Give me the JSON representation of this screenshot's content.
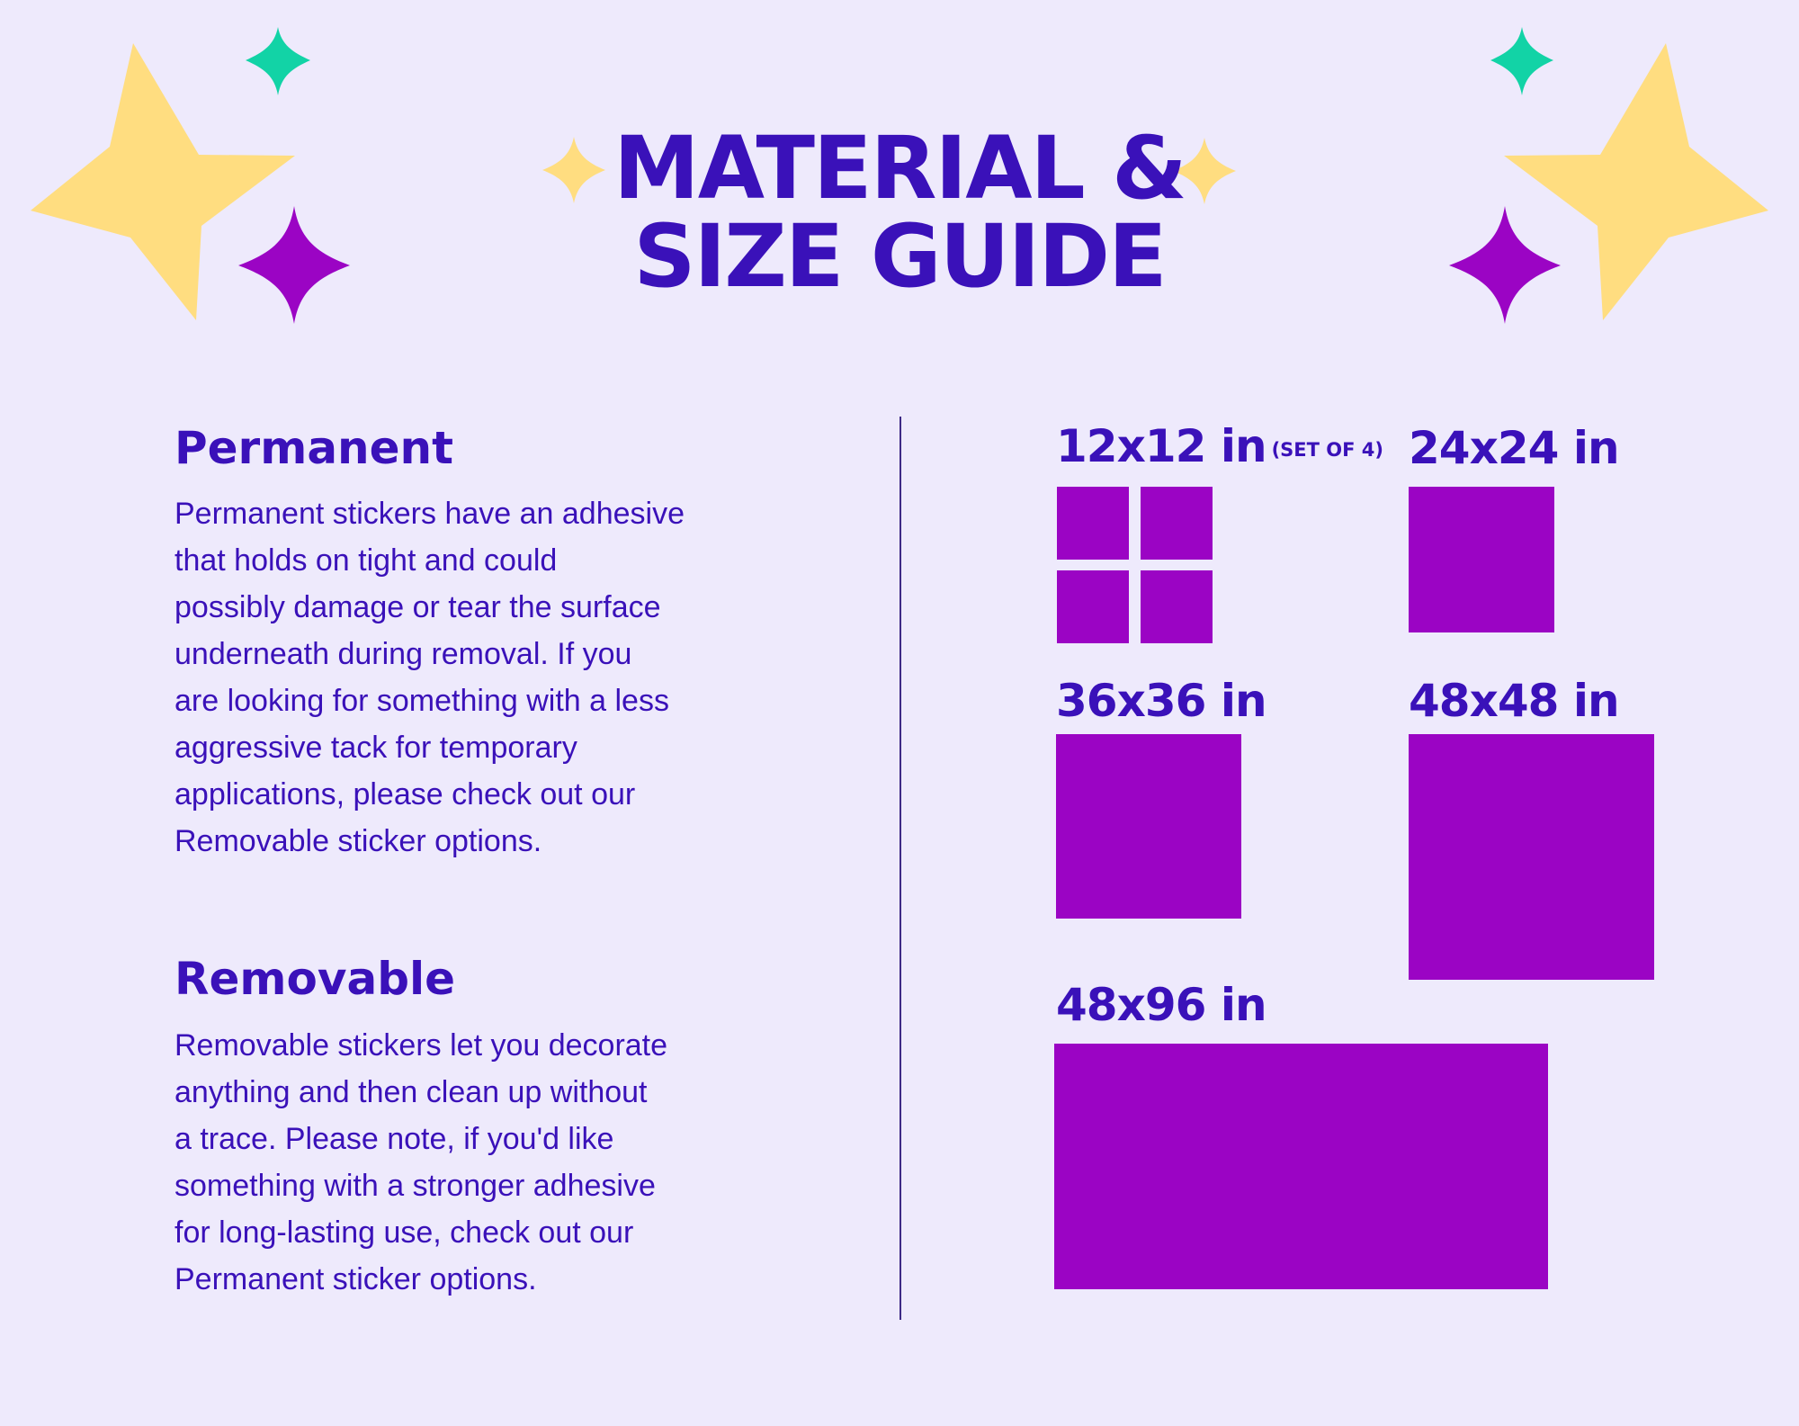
{
  "title": {
    "line1": "MATERIAL &",
    "line2": "SIZE GUIDE"
  },
  "colors": {
    "background": "#eeeafc",
    "text": "#3a11b9",
    "swatch": "#9b04c4",
    "star_yellow": "#ffdd80",
    "star_teal": "#12d3a6",
    "star_purple": "#9b04c4"
  },
  "decorations": [
    "yellow-star-icon",
    "teal-sparkle-icon",
    "purple-sparkle-icon",
    "small-yellow-sparkle-icon"
  ],
  "materials": {
    "permanent": {
      "heading": "Permanent",
      "lines": [
        "Permanent stickers have an adhesive",
        "that holds on tight and could",
        "possibly damage or tear the surface",
        "underneath during removal. If you",
        "are looking for something with a less",
        "aggressive tack for temporary",
        "applications, please check out our",
        "Removable sticker options."
      ]
    },
    "removable": {
      "heading": "Removable",
      "lines": [
        "Removable stickers let you decorate",
        "anything and then clean up without",
        "a trace. Please note, if you'd like",
        "something with a stronger adhesive",
        "for long-lasting use, check out our",
        "Permanent sticker options."
      ]
    }
  },
  "sizes": [
    {
      "label": "12x12 in",
      "note": "(SET OF 4)"
    },
    {
      "label": "24x24 in"
    },
    {
      "label": "36x36 in"
    },
    {
      "label": "48x48 in"
    },
    {
      "label": "48x96 in"
    }
  ]
}
